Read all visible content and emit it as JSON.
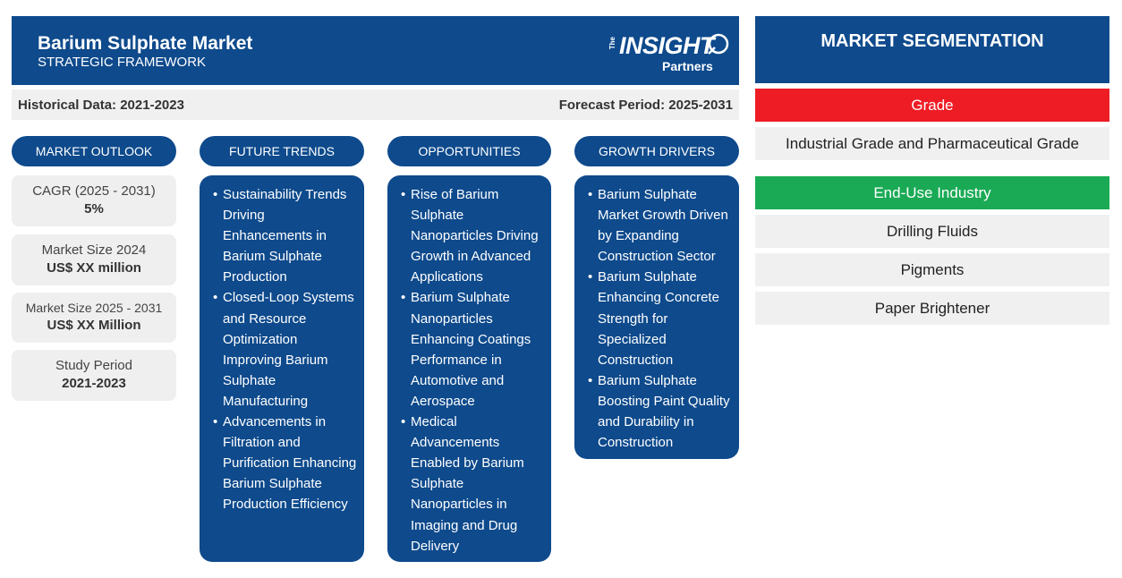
{
  "header": {
    "title": "Barium Sulphate Market",
    "subtitle": "STRATEGIC FRAMEWORK",
    "logo": {
      "the": "The",
      "insight": "INSIGHT",
      "partners": "Partners"
    }
  },
  "periods": {
    "historical": "Historical Data: 2021-2023",
    "forecast": "Forecast Period: 2025-2031"
  },
  "columns": {
    "market_outlook": "MARKET OUTLOOK",
    "future_trends": "FUTURE TRENDS",
    "opportunities": "OPPORTUNITIES",
    "growth_drivers": "GROWTH DRIVERS"
  },
  "outlook": [
    {
      "label": "CAGR (2025 - 2031)",
      "value": "5%"
    },
    {
      "label": "Market Size 2024",
      "value": "US$ XX million"
    },
    {
      "label": "Market Size 2025 - 2031",
      "value": "US$ XX Million"
    },
    {
      "label": "Study Period",
      "value": "2021-2023"
    }
  ],
  "future_trends": [
    "Sustainability Trends Driving Enhancements in Barium Sulphate Production",
    "Closed-Loop Systems and Resource Optimization Improving Barium Sulphate Manufacturing",
    "Advancements in Filtration and Purification Enhancing Barium Sulphate Production Efficiency"
  ],
  "opportunities": [
    "Rise of Barium Sulphate Nanoparticles Driving Growth in Advanced Applications",
    "Barium Sulphate Nanoparticles Enhancing Coatings Performance in Automotive and Aerospace",
    "Medical Advancements Enabled by Barium Sulphate Nanoparticles in Imaging and Drug Delivery"
  ],
  "growth_drivers": [
    "Barium Sulphate Market Growth Driven by Expanding Construction Sector",
    "Barium Sulphate Enhancing Concrete Strength for Specialized Construction",
    "Barium Sulphate Boosting Paint Quality and Durability in Construction"
  ],
  "segmentation": {
    "title": "MARKET SEGMENTATION",
    "grade": {
      "label": "Grade",
      "color": "#ee1c25",
      "items": [
        "Industrial Grade and Pharmaceutical Grade"
      ]
    },
    "end_use": {
      "label": "End-Use Industry",
      "color": "#1aaa55",
      "items": [
        "Drilling Fluids",
        "Pigments",
        "Paper Brightener"
      ]
    }
  },
  "colors": {
    "primary": "#0e4a8c",
    "panel": "#f0f0f0"
  }
}
